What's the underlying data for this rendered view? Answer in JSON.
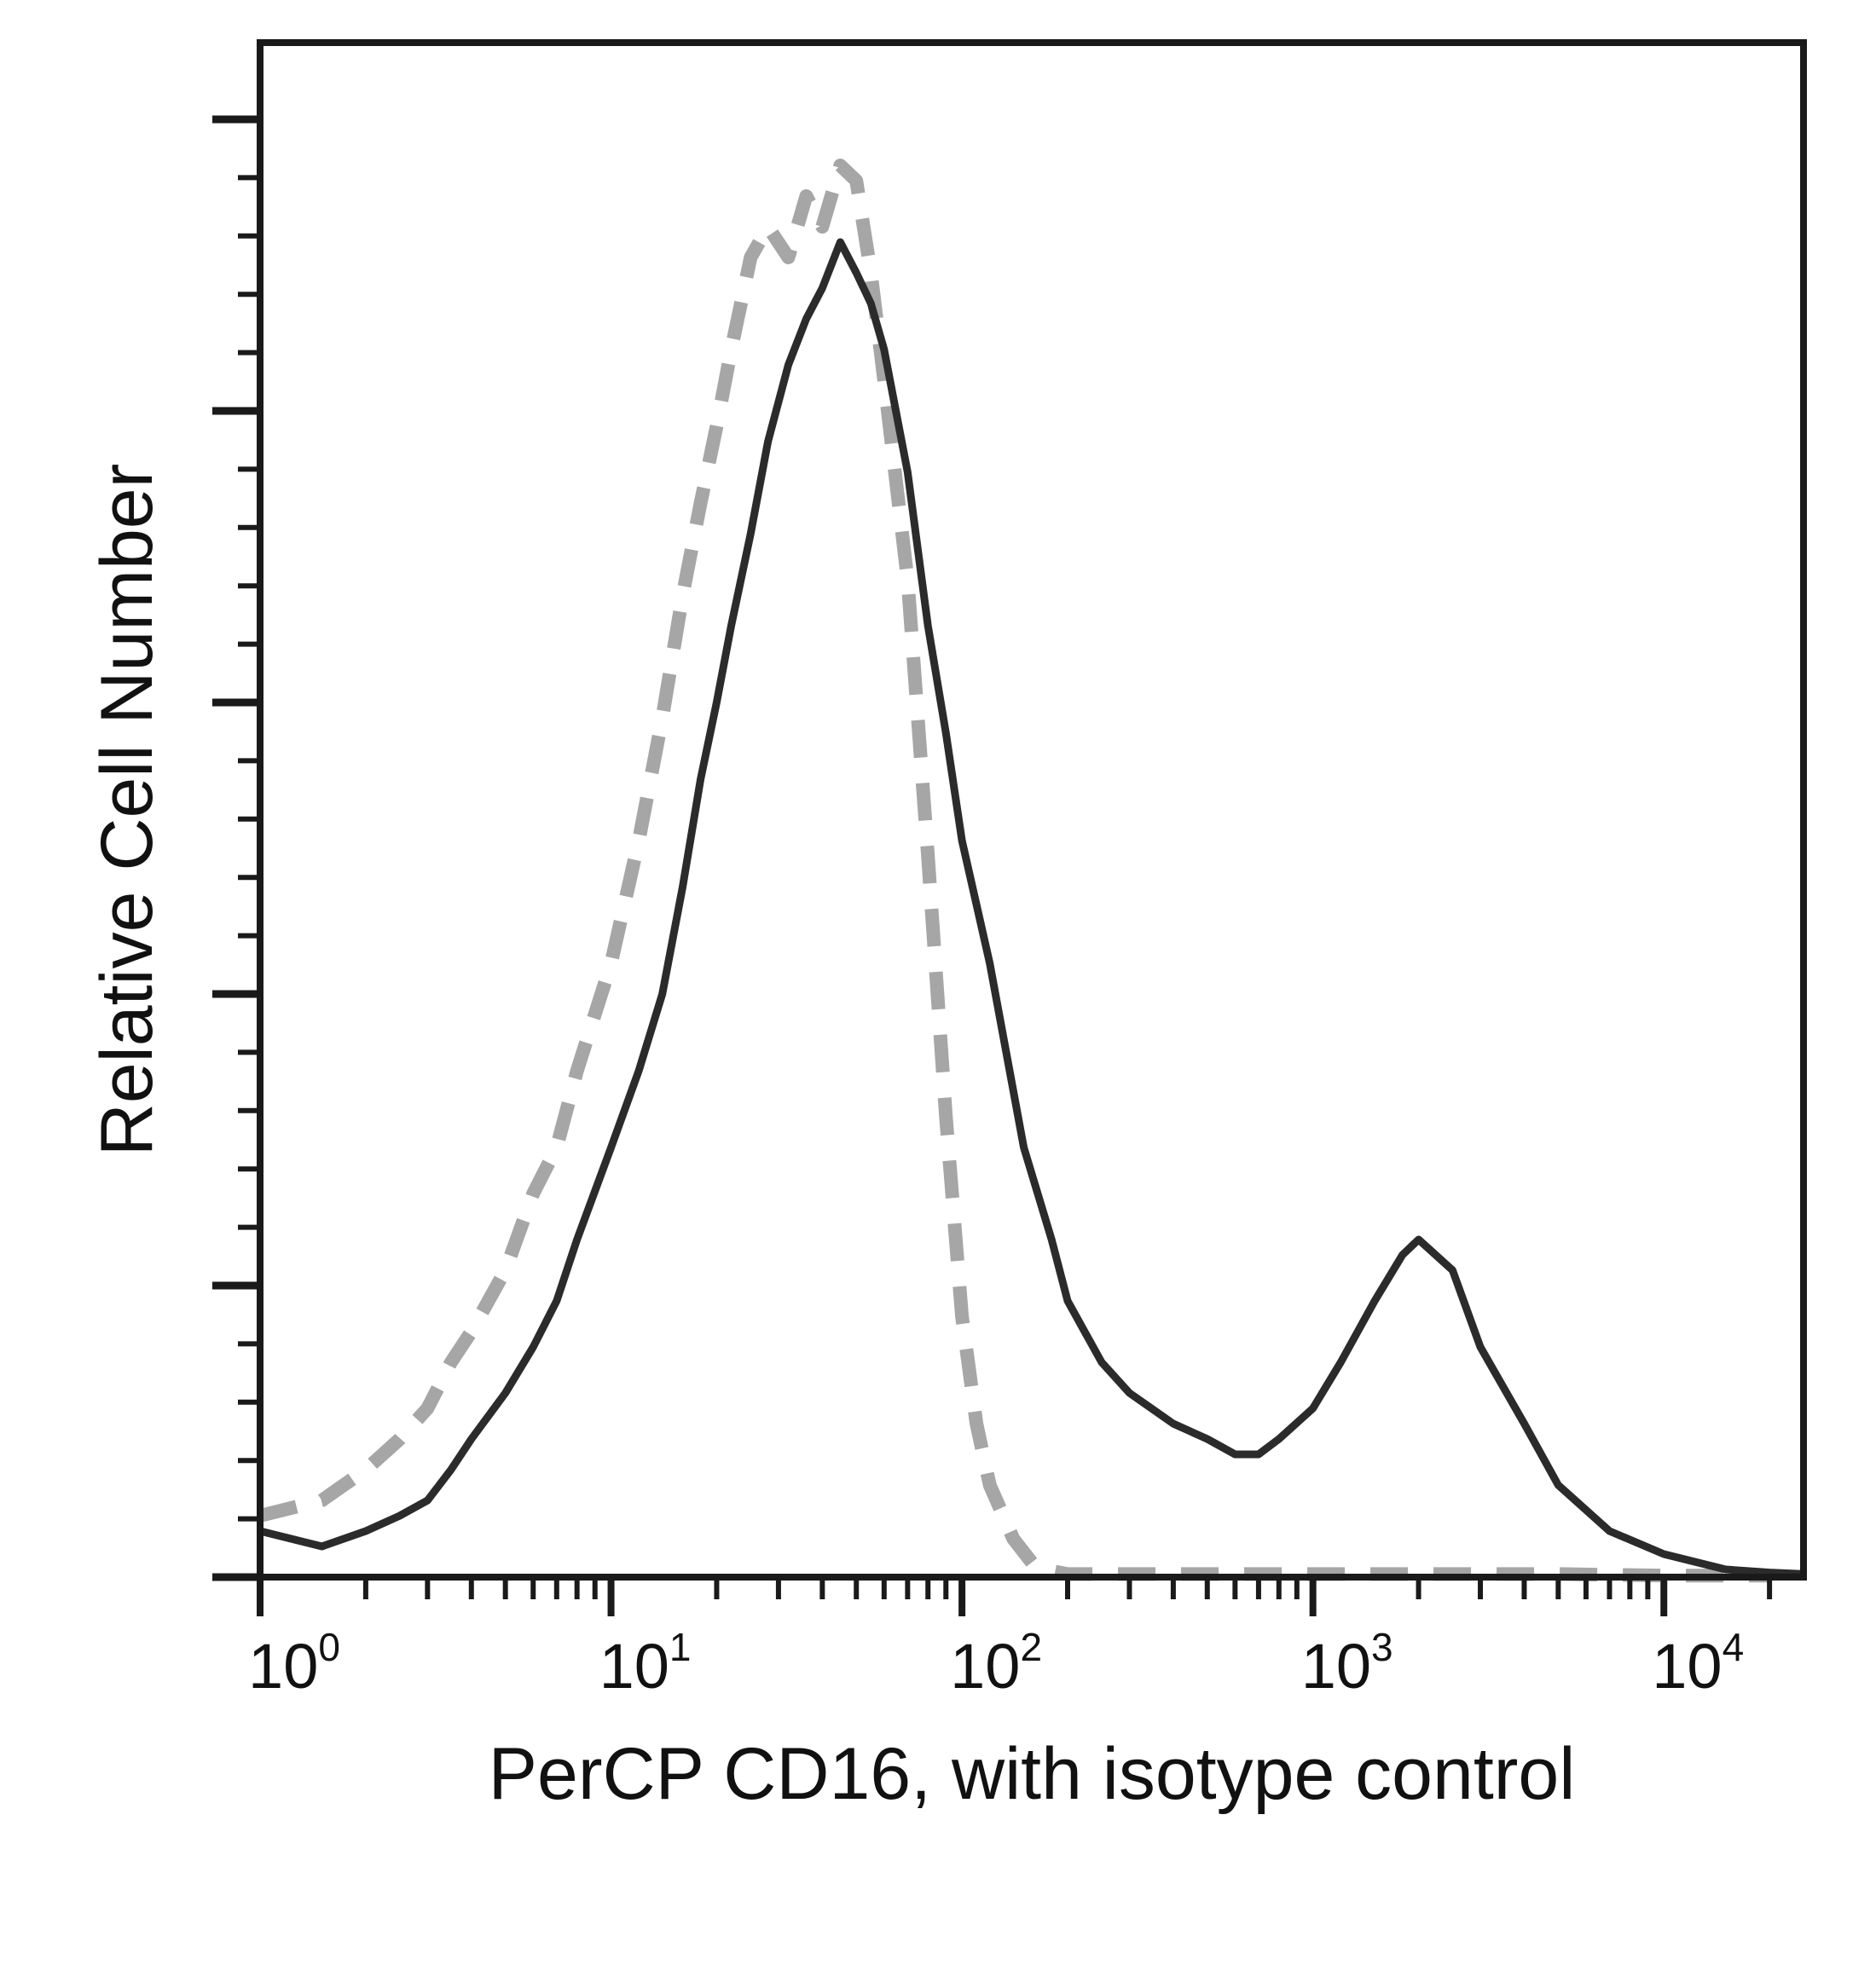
{
  "chart_data": {
    "type": "line",
    "title": "",
    "xlabel": "PerCP CD16, with isotype control",
    "ylabel": "Relative Cell Number",
    "x_scale": "log",
    "xlim": [
      1,
      25000
    ],
    "ylim": [
      0,
      100
    ],
    "grid": false,
    "legend": "none",
    "x_ticks": [
      {
        "value": 1,
        "base": "10",
        "exp": "0"
      },
      {
        "value": 10,
        "base": "10",
        "exp": "1"
      },
      {
        "value": 100,
        "base": "10",
        "exp": "2"
      },
      {
        "value": 1000,
        "base": "10",
        "exp": "3"
      },
      {
        "value": 10000,
        "base": "10",
        "exp": "4"
      }
    ],
    "y_ticks_major": [
      0,
      19,
      38,
      57,
      76,
      95
    ],
    "y_ticks_minor_count": 4,
    "series": [
      {
        "style": "dashed",
        "color": "#a6a6a6",
        "x": [
          1,
          1.5,
          2,
          2.5,
          3,
          3.5,
          4,
          5,
          6,
          7,
          8,
          10,
          12,
          14,
          16,
          18,
          20,
          22,
          25,
          28,
          32,
          36,
          40,
          45,
          50,
          55,
          60,
          70,
          80,
          90,
          100,
          110,
          120,
          140,
          160,
          180,
          200,
          300,
          500,
          1000,
          2000,
          5000,
          10000,
          20000
        ],
        "y": [
          4,
          5,
          7,
          9,
          11,
          14,
          16,
          20,
          25,
          28,
          33,
          40,
          48,
          56,
          64,
          70,
          75,
          80,
          86,
          88,
          86,
          90,
          88,
          92,
          91,
          85,
          78,
          65,
          47,
          30,
          17,
          10,
          6,
          2.5,
          0.8,
          0.4,
          0.2,
          0.2,
          0.2,
          0.2,
          0.2,
          0.2,
          0.1,
          0.1
        ]
      },
      {
        "style": "solid",
        "color": "#2b2b2b",
        "x": [
          1,
          1.5,
          2,
          2.5,
          3,
          3.5,
          4,
          5,
          6,
          7,
          8,
          10,
          12,
          14,
          16,
          18,
          20,
          22,
          25,
          28,
          32,
          36,
          40,
          45,
          50,
          55,
          60,
          70,
          80,
          90,
          100,
          120,
          150,
          180,
          200,
          250,
          300,
          400,
          500,
          600,
          700,
          800,
          1000,
          1200,
          1500,
          1800,
          2000,
          2500,
          3000,
          4000,
          5000,
          7000,
          10000,
          15000,
          20000,
          25000
        ],
        "y": [
          3,
          2,
          3,
          4,
          5,
          7,
          9,
          12,
          15,
          18,
          22,
          28,
          33,
          38,
          45,
          52,
          57,
          62,
          68,
          74,
          79,
          82,
          84,
          87,
          85,
          83,
          80,
          72,
          62,
          55,
          48,
          40,
          28,
          22,
          18,
          14,
          12,
          10,
          9,
          8,
          8,
          9,
          11,
          14,
          18,
          21,
          22,
          20,
          15,
          10,
          6,
          3,
          1.5,
          0.5,
          0.3,
          0.2
        ]
      }
    ]
  }
}
